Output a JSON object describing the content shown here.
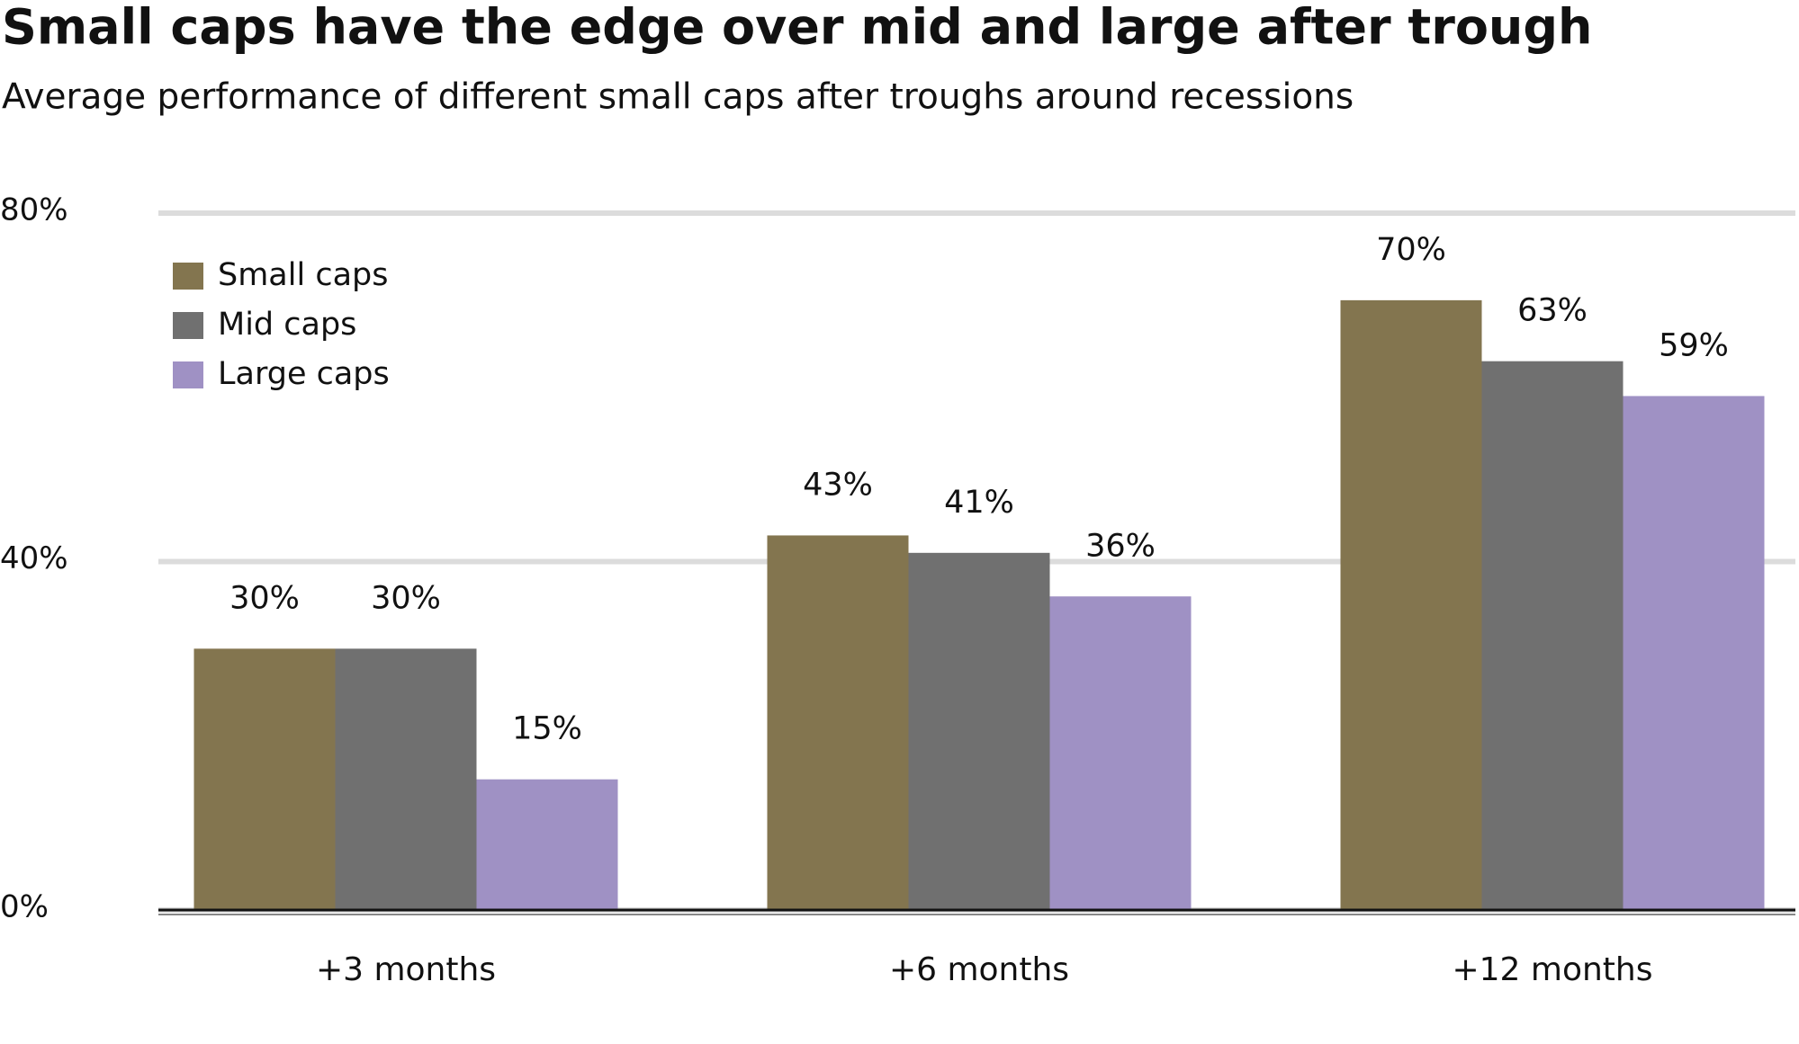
{
  "chart_data": {
    "type": "bar",
    "title": "Small caps have the edge over mid and large after trough",
    "subtitle": "Average performance of different small caps after troughs around recessions",
    "categories": [
      "+3 months",
      "+6 months",
      "+12 months"
    ],
    "series": [
      {
        "name": "Small caps",
        "color": "#83754f",
        "values": [
          30,
          43,
          70
        ],
        "value_labels": [
          "30%",
          "43%",
          "70%"
        ]
      },
      {
        "name": "Mid caps",
        "color": "#707070",
        "values": [
          30,
          41,
          63
        ],
        "value_labels": [
          "30%",
          "41%",
          "63%"
        ]
      },
      {
        "name": "Large caps",
        "color": "#9f91c4",
        "values": [
          15,
          36,
          59
        ],
        "value_labels": [
          "15%",
          "36%",
          "59%"
        ]
      }
    ],
    "ylim": [
      0,
      80
    ],
    "yticks": [
      {
        "value": 0,
        "label": "0%"
      },
      {
        "value": 40,
        "label": "40%"
      },
      {
        "value": 80,
        "label": "80%"
      }
    ],
    "grid": true,
    "legend": "top-left"
  }
}
